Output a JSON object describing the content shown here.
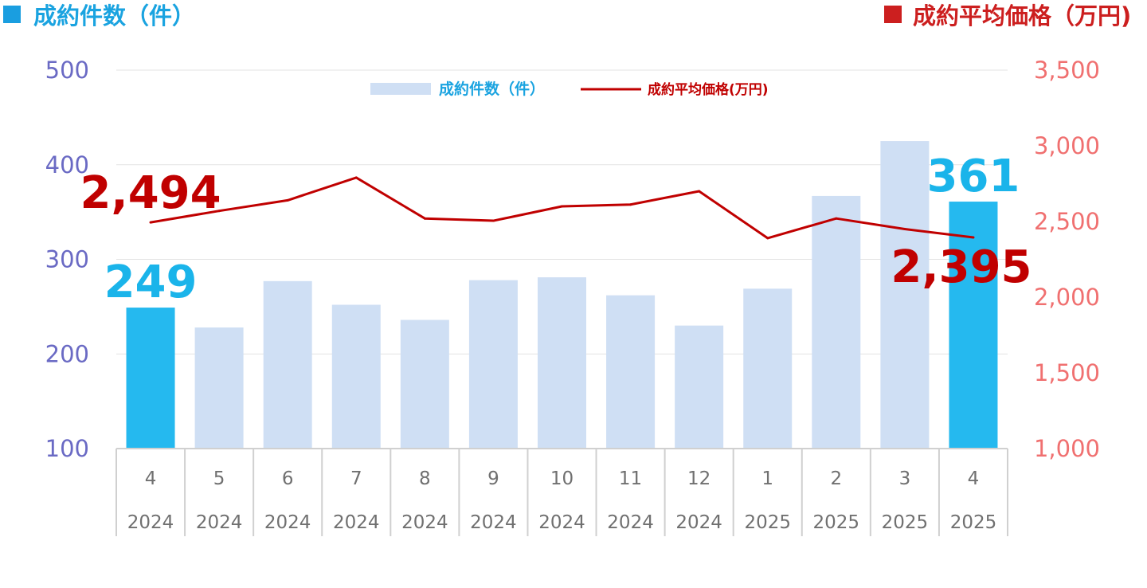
{
  "chart_data": {
    "type": "bar",
    "left_title": "成約件数（件）",
    "right_title": "成約平均価格（万円)",
    "categories": [
      {
        "month": "4",
        "year": "2024"
      },
      {
        "month": "5",
        "year": "2024"
      },
      {
        "month": "6",
        "year": "2024"
      },
      {
        "month": "7",
        "year": "2024"
      },
      {
        "month": "8",
        "year": "2024"
      },
      {
        "month": "9",
        "year": "2024"
      },
      {
        "month": "10",
        "year": "2024"
      },
      {
        "month": "11",
        "year": "2024"
      },
      {
        "month": "12",
        "year": "2024"
      },
      {
        "month": "1",
        "year": "2025"
      },
      {
        "month": "2",
        "year": "2025"
      },
      {
        "month": "3",
        "year": "2025"
      },
      {
        "month": "4",
        "year": "2025"
      }
    ],
    "series": [
      {
        "name": "成約件数（件）",
        "type": "bar",
        "axis": "left",
        "values": [
          249,
          228,
          277,
          252,
          236,
          278,
          281,
          262,
          230,
          269,
          367,
          425,
          361
        ],
        "color": "#cfdff4",
        "highlight_color": "#25b9ef",
        "highlight_indices": [
          0,
          12
        ]
      },
      {
        "name": "成約平均価格(万円)",
        "type": "line",
        "axis": "right",
        "values": [
          2494,
          2570,
          2640,
          2790,
          2520,
          2505,
          2600,
          2612,
          2700,
          2390,
          2520,
          2450,
          2395
        ],
        "color": "#c00000"
      }
    ],
    "y_left": {
      "min": 100,
      "max": 500,
      "ticks": [
        "100",
        "200",
        "300",
        "400",
        "500"
      ],
      "color": "#6a6ac4"
    },
    "y_right": {
      "min": 1000,
      "max": 3500,
      "ticks": [
        "1,000",
        "1,500",
        "2,000",
        "2,500",
        "3,000",
        "3,500"
      ],
      "color": "#f07070"
    },
    "grid": true,
    "legend": {
      "position": "top-center",
      "bar_label": "成約件数（件）",
      "line_label": "成約平均価格(万円)"
    },
    "callouts": [
      {
        "text": "249",
        "series": "bar",
        "index": 0,
        "color": "#1ab4ea"
      },
      {
        "text": "361",
        "series": "bar",
        "index": 12,
        "color": "#1ab4ea"
      },
      {
        "text": "2,494",
        "series": "line",
        "index": 0,
        "color": "#c00000"
      },
      {
        "text": "2,395",
        "series": "line",
        "index": 12,
        "color": "#c00000"
      }
    ],
    "legend_square_colors": {
      "left": "#1a9ee0",
      "right": "#cc1f1f"
    }
  }
}
